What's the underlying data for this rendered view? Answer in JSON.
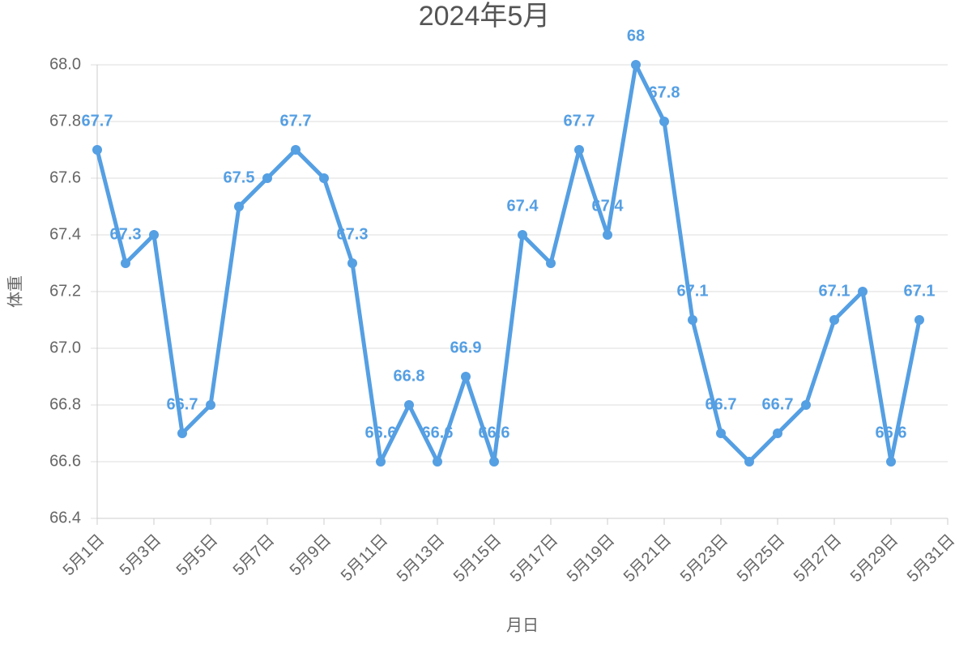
{
  "chart_data": {
    "type": "line",
    "title": "2024年5月",
    "x_label": "月日",
    "y_label": "体重",
    "categories": [
      "5月1日",
      null,
      "5月3日",
      null,
      "5月5日",
      null,
      "5月7日",
      null,
      "5月9日",
      null,
      "5月11日",
      null,
      "5月13日",
      null,
      "5月15日",
      null,
      "5月17日",
      null,
      "5月19日",
      null,
      "5月21日",
      null,
      "5月23日",
      null,
      "5月25日",
      null,
      "5月27日",
      null,
      "5月29日",
      null,
      "5月31日"
    ],
    "series": [
      {
        "name": "体重",
        "color": "#559fe3",
        "values": [
          67.7,
          67.3,
          67.4,
          66.7,
          66.8,
          67.5,
          67.6,
          67.7,
          67.6,
          67.3,
          66.6,
          66.8,
          66.6,
          66.9,
          66.6,
          67.4,
          67.3,
          67.7,
          67.4,
          68.0,
          67.8,
          67.1,
          66.7,
          66.6,
          66.7,
          66.8,
          67.1,
          67.2,
          66.6,
          67.1,
          null
        ],
        "value_labels": [
          "67.7",
          "67.3",
          null,
          "66.7",
          null,
          "67.5",
          null,
          "67.7",
          null,
          "67.3",
          "66.6",
          "66.8",
          "66.6",
          "66.9",
          "66.6",
          "67.4",
          null,
          "67.7",
          "67.4",
          "68",
          "67.8",
          "67.1",
          "66.7",
          null,
          "66.7",
          null,
          "67.1",
          null,
          "66.6",
          "67.1",
          null
        ]
      }
    ],
    "ylim": [
      66.4,
      68.0
    ],
    "yticks": [
      66.4,
      66.6,
      66.8,
      {
        "value": 67.0,
        "label": "67.0"
      },
      67.2,
      67.4,
      67.6,
      67.8,
      {
        "value": 68.0,
        "label": "68.0"
      }
    ],
    "grid": true
  }
}
